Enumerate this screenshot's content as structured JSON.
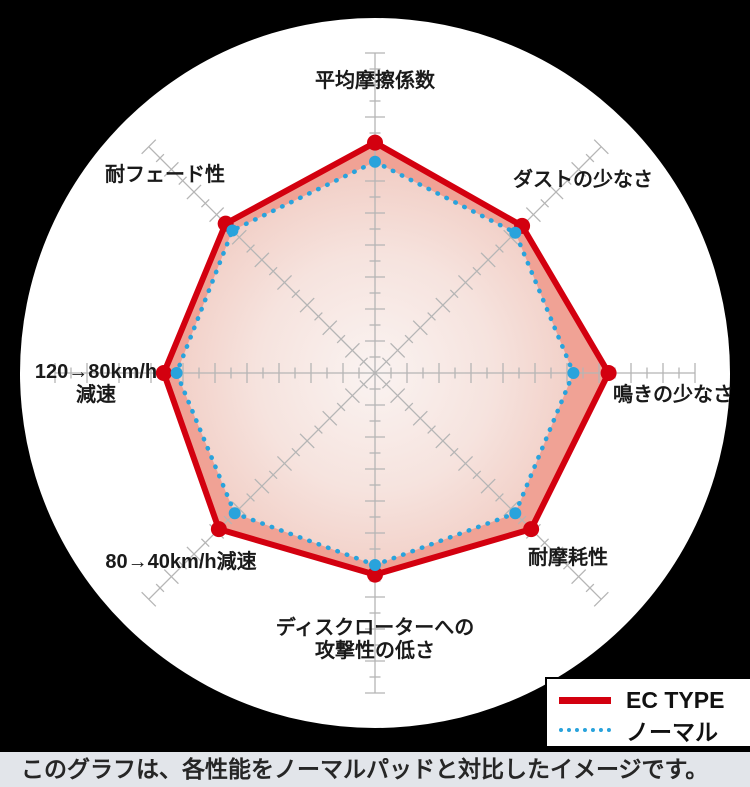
{
  "page": {
    "background_color": "#000000",
    "caption": "このグラフは、各性能をノーマルパッドと対比したイメージです。"
  },
  "axis_labels": {
    "top": "平均摩擦係数",
    "top_right": "ダストの少なさ",
    "right": "鳴きの少なさ",
    "bottom_right": "耐摩耗性",
    "bottom": "ディスクローターへの\n攻撃性の低さ",
    "bottom_left": "80→40km/h減速",
    "left": "120→80km/h\n減速",
    "top_left": "耐フェード性"
  },
  "legend": {
    "items": [
      {
        "label": "EC TYPE",
        "color": "#d3000f",
        "line_style": "solid"
      },
      {
        "label": "ノーマル",
        "color": "#29a3dc",
        "line_style": "dotted"
      }
    ]
  },
  "chart_data": {
    "type": "radar",
    "categories": [
      "平均摩擦係数",
      "ダストの少なさ",
      "鳴きの少なさ",
      "耐摩耗性",
      "ディスクローターへの攻撃性の低さ",
      "80→40km/h減速",
      "120→80km/h減速",
      "耐フェード性"
    ],
    "series": [
      {
        "name": "EC TYPE",
        "color": "#d3000f",
        "line_style": "solid",
        "fill": "#f0a295",
        "values": [
          7.2,
          6.5,
          7.3,
          6.9,
          6.3,
          6.9,
          6.6,
          6.6
        ]
      },
      {
        "name": "ノーマル",
        "color": "#29a3dc",
        "line_style": "dotted",
        "fill": "gradient",
        "values": [
          6.6,
          6.2,
          6.2,
          6.2,
          6.0,
          6.2,
          6.2,
          6.3
        ]
      }
    ],
    "rmax": 10,
    "grid": "radial-ticks",
    "legend_position": "bottom-right",
    "palette": {
      "axis": "#b5b5b5",
      "inner_gradient": [
        "#faf3f1",
        "#f6e3de",
        "#f1ccc3"
      ],
      "disc": "#ffffff"
    }
  }
}
